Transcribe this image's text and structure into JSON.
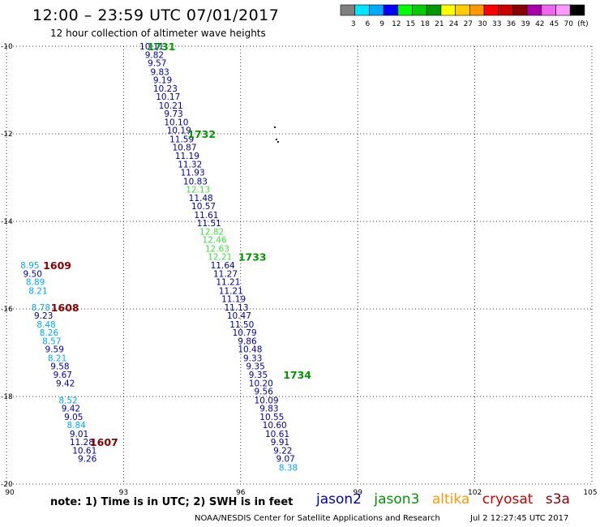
{
  "header": {
    "title": "12:00 – 23:59 UTC 07/01/2017",
    "subtitle": "12 hour collection of altimeter wave heights"
  },
  "legend": {
    "labels": [
      "3",
      "6",
      "9",
      "12",
      "15",
      "18",
      "21",
      "24",
      "27",
      "30",
      "33",
      "36",
      "39",
      "42",
      "45",
      "70",
      "(ft)"
    ],
    "colors": [
      "#808080",
      "#00e5ff",
      "#00aaff",
      "#0000ff",
      "#00ff00",
      "#00cc00",
      "#009900",
      "#ffff00",
      "#ffcc00",
      "#ff9900",
      "#ff0000",
      "#cc0000",
      "#880000",
      "#aa00aa",
      "#ee66ee",
      "#ff99ff",
      "#000000"
    ]
  },
  "axes": {
    "x_ticks": [
      "90",
      "93",
      "96",
      "99",
      "102",
      "105"
    ],
    "y_ticks": [
      "-10",
      "-12",
      "-14",
      "-16",
      "-18",
      "-20"
    ],
    "x_range": [
      90,
      105
    ],
    "y_range": [
      -10,
      -20
    ]
  },
  "tracks": [
    {
      "time": "1731",
      "time_color": "#009900",
      "lon": 93.97,
      "lat": -10.0,
      "points": [
        {
          "v": "10.11",
          "c": "#0000aa",
          "lon": 93.72,
          "lat": -10.0
        },
        {
          "v": "9.82",
          "c": "#0000aa",
          "lon": 93.79,
          "lat": -10.19
        },
        {
          "v": "9.57",
          "c": "#0000aa",
          "lon": 93.86,
          "lat": -10.38
        },
        {
          "v": "9.83",
          "c": "#0000aa",
          "lon": 93.93,
          "lat": -10.58
        },
        {
          "v": "9.19",
          "c": "#0000aa",
          "lon": 94.0,
          "lat": -10.77
        },
        {
          "v": "10.23",
          "c": "#0000aa",
          "lon": 94.07,
          "lat": -10.96
        },
        {
          "v": "10.17",
          "c": "#0000aa",
          "lon": 94.14,
          "lat": -11.15
        },
        {
          "v": "10.21",
          "c": "#0000aa",
          "lon": 94.21,
          "lat": -11.35
        },
        {
          "v": "9.73",
          "c": "#0000aa",
          "lon": 94.28,
          "lat": -11.54
        },
        {
          "v": "10.10",
          "c": "#0000aa",
          "lon": 94.35,
          "lat": -11.73
        },
        {
          "v": "10.19",
          "c": "#0000aa",
          "lon": 94.42,
          "lat": -11.92
        }
      ]
    },
    {
      "time": "1732",
      "time_color": "#009900",
      "lon": 95.0,
      "lat": -12.0,
      "points": [
        {
          "v": "11.59",
          "c": "#0000aa",
          "lon": 94.49,
          "lat": -12.12
        },
        {
          "v": "10.87",
          "c": "#0000aa",
          "lon": 94.56,
          "lat": -12.31
        },
        {
          "v": "11.19",
          "c": "#0000aa",
          "lon": 94.63,
          "lat": -12.5
        },
        {
          "v": "11.32",
          "c": "#0000aa",
          "lon": 94.7,
          "lat": -12.69
        },
        {
          "v": "11.93",
          "c": "#0000aa",
          "lon": 94.77,
          "lat": -12.88
        },
        {
          "v": "10.83",
          "c": "#0000aa",
          "lon": 94.84,
          "lat": -13.08
        },
        {
          "v": "12.13",
          "c": "#44dd44",
          "lon": 94.91,
          "lat": -13.27
        },
        {
          "v": "11.48",
          "c": "#0000aa",
          "lon": 94.98,
          "lat": -13.46
        },
        {
          "v": "10.57",
          "c": "#0000aa",
          "lon": 95.05,
          "lat": -13.65
        },
        {
          "v": "11.61",
          "c": "#0000aa",
          "lon": 95.12,
          "lat": -13.85
        },
        {
          "v": "11.51",
          "c": "#0000aa",
          "lon": 95.19,
          "lat": -14.04
        },
        {
          "v": "12.82",
          "c": "#44dd44",
          "lon": 95.26,
          "lat": -14.23
        },
        {
          "v": "12.46",
          "c": "#44dd44",
          "lon": 95.33,
          "lat": -14.42
        },
        {
          "v": "12.63",
          "c": "#44dd44",
          "lon": 95.4,
          "lat": -14.62
        },
        {
          "v": "12.21",
          "c": "#44dd44",
          "lon": 95.47,
          "lat": -14.81
        }
      ]
    },
    {
      "time": "1733",
      "time_color": "#009900",
      "lon": 96.3,
      "lat": -14.81,
      "points": [
        {
          "v": "11.64",
          "c": "#0000aa",
          "lon": 95.54,
          "lat": -15.0
        },
        {
          "v": "11.27",
          "c": "#0000aa",
          "lon": 95.61,
          "lat": -15.19
        },
        {
          "v": "11.21",
          "c": "#0000aa",
          "lon": 95.68,
          "lat": -15.38
        },
        {
          "v": "11.21",
          "c": "#0000aa",
          "lon": 95.75,
          "lat": -15.58
        },
        {
          "v": "11.19",
          "c": "#0000aa",
          "lon": 95.82,
          "lat": -15.77
        },
        {
          "v": "11.13",
          "c": "#0000aa",
          "lon": 95.89,
          "lat": -15.96
        },
        {
          "v": "10.47",
          "c": "#0000aa",
          "lon": 95.96,
          "lat": -16.15
        },
        {
          "v": "11.50",
          "c": "#0000aa",
          "lon": 96.03,
          "lat": -16.35
        },
        {
          "v": "10.79",
          "c": "#0000aa",
          "lon": 96.1,
          "lat": -16.54
        },
        {
          "v": "9.86",
          "c": "#0000aa",
          "lon": 96.17,
          "lat": -16.73
        },
        {
          "v": "10.48",
          "c": "#0000aa",
          "lon": 96.24,
          "lat": -16.92
        },
        {
          "v": "9.33",
          "c": "#0000aa",
          "lon": 96.31,
          "lat": -17.12
        },
        {
          "v": "9.35",
          "c": "#0000aa",
          "lon": 96.38,
          "lat": -17.31
        },
        {
          "v": "9.35",
          "c": "#0000aa",
          "lon": 96.45,
          "lat": -17.5
        }
      ]
    },
    {
      "time": "1734",
      "time_color": "#009900",
      "lon": 97.45,
      "lat": -17.5,
      "points": [
        {
          "v": "10.20",
          "c": "#0000aa",
          "lon": 96.52,
          "lat": -17.69
        },
        {
          "v": "9.56",
          "c": "#0000aa",
          "lon": 96.59,
          "lat": -17.88
        },
        {
          "v": "10.09",
          "c": "#0000aa",
          "lon": 96.66,
          "lat": -18.08
        },
        {
          "v": "9.83",
          "c": "#0000aa",
          "lon": 96.73,
          "lat": -18.27
        },
        {
          "v": "10.55",
          "c": "#0000aa",
          "lon": 96.8,
          "lat": -18.46
        },
        {
          "v": "10.60",
          "c": "#0000aa",
          "lon": 96.87,
          "lat": -18.65
        },
        {
          "v": "10.61",
          "c": "#0000aa",
          "lon": 96.94,
          "lat": -18.85
        },
        {
          "v": "9.91",
          "c": "#0000aa",
          "lon": 97.01,
          "lat": -19.04
        },
        {
          "v": "9.22",
          "c": "#0000aa",
          "lon": 97.08,
          "lat": -19.23
        },
        {
          "v": "9.07",
          "c": "#0000aa",
          "lon": 97.15,
          "lat": -19.42
        },
        {
          "v": "8.38",
          "c": "#00aaff",
          "lon": 97.22,
          "lat": -19.62
        }
      ]
    },
    {
      "time": "1609",
      "time_color": "#880000",
      "lon": 91.3,
      "lat": -15.0,
      "points": [
        {
          "v": "8.95",
          "c": "#00aaff",
          "lon": 90.6,
          "lat": -15.0
        },
        {
          "v": "9.50",
          "c": "#0000aa",
          "lon": 90.67,
          "lat": -15.19
        },
        {
          "v": "8.89",
          "c": "#00aaff",
          "lon": 90.74,
          "lat": -15.38
        },
        {
          "v": "8.21",
          "c": "#00aaff",
          "lon": 90.81,
          "lat": -15.58
        }
      ]
    },
    {
      "time": "1608",
      "time_color": "#880000",
      "lon": 91.5,
      "lat": -15.96,
      "points": [
        {
          "v": "8.78",
          "c": "#00aaff",
          "lon": 90.88,
          "lat": -15.96
        },
        {
          "v": "9.23",
          "c": "#0000aa",
          "lon": 90.95,
          "lat": -16.15
        },
        {
          "v": "8.48",
          "c": "#00aaff",
          "lon": 91.02,
          "lat": -16.35
        },
        {
          "v": "8.26",
          "c": "#00aaff",
          "lon": 91.09,
          "lat": -16.54
        },
        {
          "v": "8.57",
          "c": "#00aaff",
          "lon": 91.16,
          "lat": -16.73
        },
        {
          "v": "9.59",
          "c": "#0000aa",
          "lon": 91.23,
          "lat": -16.92
        },
        {
          "v": "8.21",
          "c": "#00aaff",
          "lon": 91.3,
          "lat": -17.12
        },
        {
          "v": "9.58",
          "c": "#0000aa",
          "lon": 91.37,
          "lat": -17.31
        },
        {
          "v": "9.67",
          "c": "#0000aa",
          "lon": 91.44,
          "lat": -17.5
        },
        {
          "v": "9.42",
          "c": "#0000aa",
          "lon": 91.51,
          "lat": -17.69
        },
        {
          "v": "8.52",
          "c": "#00aaff",
          "lon": 91.58,
          "lat": -18.08
        },
        {
          "v": "9.42",
          "c": "#0000aa",
          "lon": 91.65,
          "lat": -18.27
        },
        {
          "v": "9.05",
          "c": "#0000aa",
          "lon": 91.72,
          "lat": -18.46
        },
        {
          "v": "8.84",
          "c": "#00aaff",
          "lon": 91.79,
          "lat": -18.65
        },
        {
          "v": "9.01",
          "c": "#0000aa",
          "lon": 91.86,
          "lat": -18.85
        },
        {
          "v": "11.28",
          "c": "#0000aa",
          "lon": 91.93,
          "lat": -19.04
        }
      ]
    },
    {
      "time": "1607",
      "time_color": "#880000",
      "lon": 92.5,
      "lat": -19.04,
      "points": [
        {
          "v": "10.61",
          "c": "#0000aa",
          "lon": 92.0,
          "lat": -19.23
        },
        {
          "v": "9.26",
          "c": "#0000aa",
          "lon": 92.07,
          "lat": -19.42
        }
      ]
    }
  ],
  "note": "note:  1) Time is in UTC;  2) SWH is in feet",
  "satellites": [
    {
      "name": "jason2",
      "color": "#0000cc"
    },
    {
      "name": "jason3",
      "color": "#009900"
    },
    {
      "name": "altika",
      "color": "#ff9900"
    },
    {
      "name": "cryosat",
      "color": "#cc0000"
    },
    {
      "name": "s3a",
      "color": "#880000"
    }
  ],
  "credit": "NOAA/NESDIS Center for Satellite Applications and Research",
  "credit_time": "Jul  2 12:27:45 UTC 2017"
}
